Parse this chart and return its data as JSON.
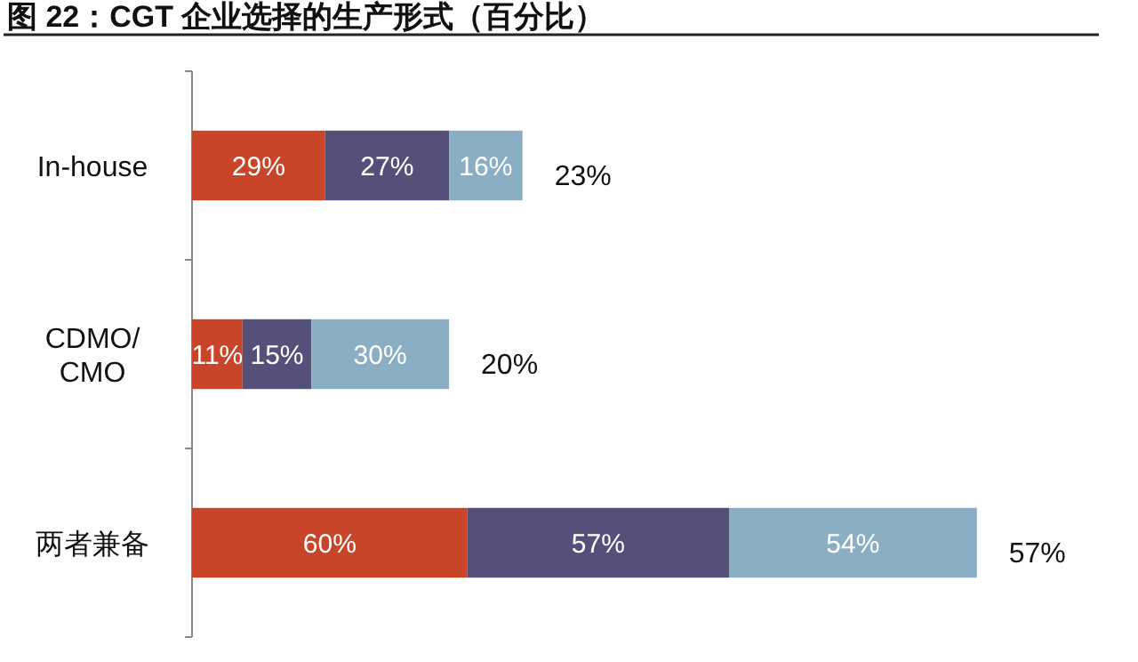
{
  "chart_data": {
    "type": "bar",
    "orientation": "horizontal",
    "stacked": true,
    "title": "图 22：CGT 企业选择的生产形式（百分比）",
    "categories": [
      "In-house",
      "CDMO/CMO",
      "两者兼备"
    ],
    "series": [
      {
        "color": "#c9452a",
        "values": [
          29,
          11,
          60
        ],
        "value_labels": [
          "29%",
          "11%",
          "60%"
        ]
      },
      {
        "color": "#55507a",
        "values": [
          27,
          15,
          57
        ],
        "value_labels": [
          "27%",
          "15%",
          "57%"
        ]
      },
      {
        "color": "#8aafc4",
        "values": [
          16,
          30,
          54
        ],
        "value_labels": [
          "16%",
          "30%",
          "54%"
        ]
      }
    ],
    "annotations": [
      "23%",
      "20%",
      "57%"
    ]
  }
}
